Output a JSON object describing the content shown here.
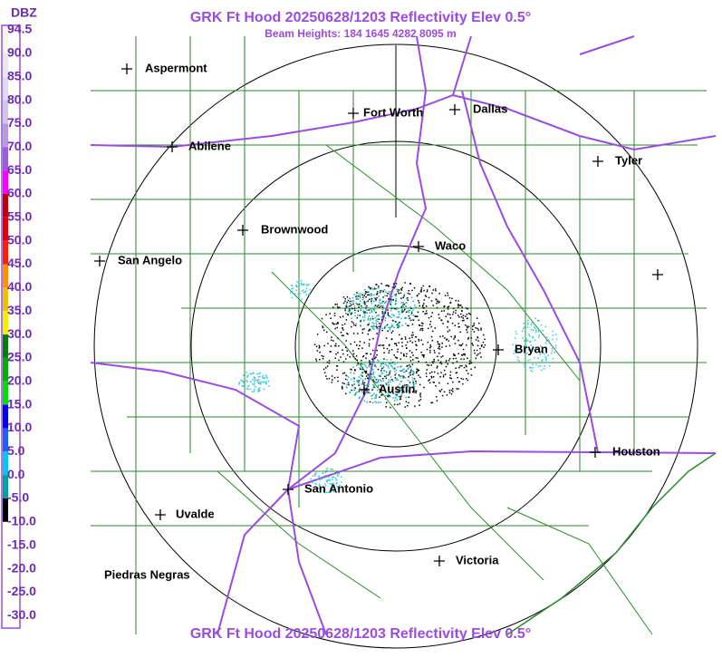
{
  "header": {
    "title": "GRK Ft Hood 20250628/1203 Reflectivity Elev 0.5°",
    "subtitle": "Beam Heights: 184 1645 4282 8095 m",
    "footer": "GRK Ft Hood 20250628/1203 Reflectivity Elev 0.5°"
  },
  "legend": {
    "unit": "DBZ",
    "labels": [
      "94.5",
      "90.0",
      "85.0",
      "80.0",
      "75.0",
      "70.0",
      "65.0",
      "60.0",
      "55.0",
      "50.0",
      "45.0",
      "40.0",
      "35.0",
      "30.0",
      "25.0",
      "20.0",
      "15.0",
      "10.0",
      "5.0",
      "0.0",
      "-5.0",
      "-10.0",
      "-15.0",
      "-20.0",
      "-25.0",
      "-30.0"
    ],
    "colors": [
      "#f4f4f4",
      "#e8e8f0",
      "#dcdcec",
      "#d0c8e8",
      "#b89ae0",
      "#9a5fd8",
      "#ff00ff",
      "#c00000",
      "#e00000",
      "#ff2000",
      "#ff9000",
      "#f0c000",
      "#f0f000",
      "#008000",
      "#00b000",
      "#00e000",
      "#0000f0",
      "#2060ff",
      "#00c8f0",
      "#00a0a0",
      "#000000",
      "#ffffff",
      "#ffffff",
      "#ffffff",
      "#ffffff"
    ]
  },
  "cities": [
    {
      "name": "Aspermont"
    },
    {
      "name": "Fort Worth"
    },
    {
      "name": "Dallas"
    },
    {
      "name": "Abilene"
    },
    {
      "name": "Tyler"
    },
    {
      "name": "Brownwood"
    },
    {
      "name": "Waco"
    },
    {
      "name": "San Angelo"
    },
    {
      "name": "Bryan"
    },
    {
      "name": "Austin"
    },
    {
      "name": "Houston"
    },
    {
      "name": "San Antonio"
    },
    {
      "name": "Uvalde"
    },
    {
      "name": "Victoria"
    },
    {
      "name": "Piedras Negras"
    }
  ]
}
